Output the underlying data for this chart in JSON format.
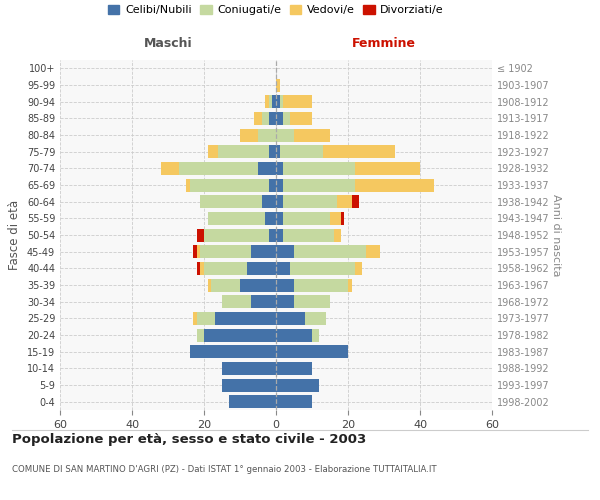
{
  "age_groups": [
    "0-4",
    "5-9",
    "10-14",
    "15-19",
    "20-24",
    "25-29",
    "30-34",
    "35-39",
    "40-44",
    "45-49",
    "50-54",
    "55-59",
    "60-64",
    "65-69",
    "70-74",
    "75-79",
    "80-84",
    "85-89",
    "90-94",
    "95-99",
    "100+"
  ],
  "birth_years": [
    "1998-2002",
    "1993-1997",
    "1988-1992",
    "1983-1987",
    "1978-1982",
    "1973-1977",
    "1968-1972",
    "1963-1967",
    "1958-1962",
    "1953-1957",
    "1948-1952",
    "1943-1947",
    "1938-1942",
    "1933-1937",
    "1928-1932",
    "1923-1927",
    "1918-1922",
    "1913-1917",
    "1908-1912",
    "1903-1907",
    "≤ 1902"
  ],
  "maschi": {
    "celibi": [
      13,
      15,
      15,
      24,
      20,
      17,
      7,
      10,
      8,
      7,
      2,
      3,
      4,
      2,
      5,
      2,
      0,
      2,
      1,
      0,
      0
    ],
    "coniugati": [
      0,
      0,
      0,
      0,
      2,
      5,
      8,
      8,
      12,
      14,
      18,
      16,
      17,
      22,
      22,
      14,
      5,
      2,
      1,
      0,
      0
    ],
    "vedovi": [
      0,
      0,
      0,
      0,
      0,
      1,
      0,
      1,
      1,
      1,
      0,
      0,
      0,
      1,
      5,
      3,
      5,
      2,
      1,
      0,
      0
    ],
    "divorziati": [
      0,
      0,
      0,
      0,
      0,
      0,
      0,
      0,
      1,
      1,
      2,
      0,
      0,
      0,
      0,
      0,
      0,
      0,
      0,
      0,
      0
    ]
  },
  "femmine": {
    "nubili": [
      10,
      12,
      10,
      20,
      10,
      8,
      5,
      5,
      4,
      5,
      2,
      2,
      2,
      2,
      2,
      1,
      0,
      2,
      1,
      0,
      0
    ],
    "coniugate": [
      0,
      0,
      0,
      0,
      2,
      6,
      10,
      15,
      18,
      20,
      14,
      13,
      15,
      20,
      20,
      12,
      5,
      2,
      1,
      0,
      0
    ],
    "vedove": [
      0,
      0,
      0,
      0,
      0,
      0,
      0,
      1,
      2,
      4,
      2,
      3,
      4,
      22,
      18,
      20,
      10,
      6,
      8,
      1,
      0
    ],
    "divorziate": [
      0,
      0,
      0,
      0,
      0,
      0,
      0,
      0,
      0,
      0,
      0,
      1,
      2,
      0,
      0,
      0,
      0,
      0,
      0,
      0,
      0
    ]
  },
  "colors": {
    "celibi": "#4472a8",
    "coniugati": "#c5d9a0",
    "vedovi": "#f5c860",
    "divorziati": "#cc1100"
  },
  "xlim": 60,
  "title": "Popolazione per età, sesso e stato civile - 2003",
  "subtitle": "COMUNE DI SAN MARTINO D'AGRI (PZ) - Dati ISTAT 1° gennaio 2003 - Elaborazione TUTTAITALIA.IT",
  "ylabel_left": "Fasce di età",
  "ylabel_right": "Anni di nascita",
  "legend_labels": [
    "Celibi/Nubili",
    "Coniugati/e",
    "Vedovi/e",
    "Divorziati/e"
  ]
}
